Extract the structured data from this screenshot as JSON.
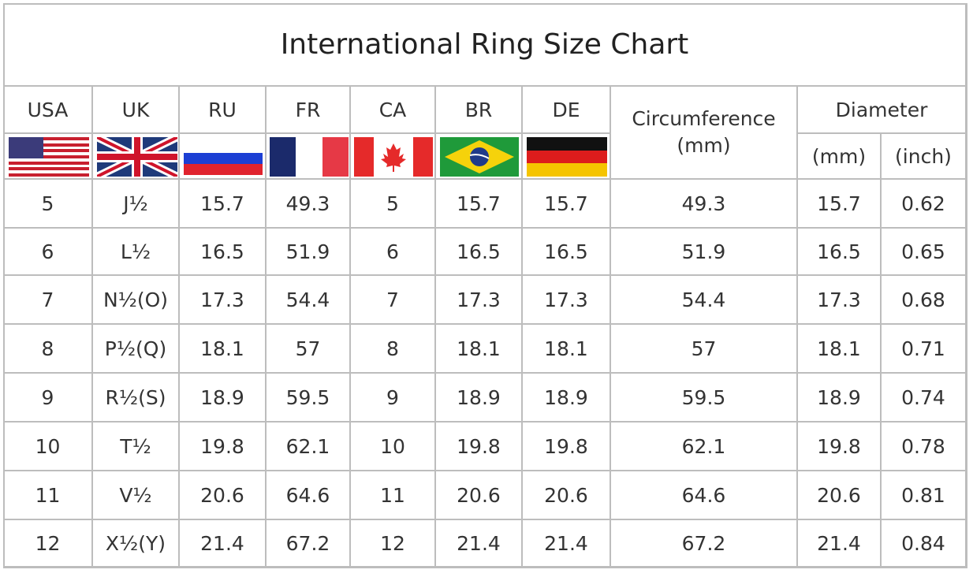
{
  "title": "International Ring Size Chart",
  "header": {
    "countries": [
      "USA",
      "UK",
      "RU",
      "FR",
      "CA",
      "BR",
      "DE"
    ],
    "circumference": {
      "label": "Circumference",
      "unit": "(mm)"
    },
    "diameter": {
      "label": "Diameter",
      "units": [
        "(mm)",
        "(inch)"
      ]
    }
  },
  "table": {
    "rows": [
      [
        "5",
        "J½",
        "15.7",
        "49.3",
        "5",
        "15.7",
        "15.7",
        "49.3",
        "15.7",
        "0.62"
      ],
      [
        "6",
        "L½",
        "16.5",
        "51.9",
        "6",
        "16.5",
        "16.5",
        "51.9",
        "16.5",
        "0.65"
      ],
      [
        "7",
        "N½(O)",
        "17.3",
        "54.4",
        "7",
        "17.3",
        "17.3",
        "54.4",
        "17.3",
        "0.68"
      ],
      [
        "8",
        "P½(Q)",
        "18.1",
        "57",
        "8",
        "18.1",
        "18.1",
        "57",
        "18.1",
        "0.71"
      ],
      [
        "9",
        "R½(S)",
        "18.9",
        "59.5",
        "9",
        "18.9",
        "18.9",
        "59.5",
        "18.9",
        "0.74"
      ],
      [
        "10",
        "T½",
        "19.8",
        "62.1",
        "10",
        "19.8",
        "19.8",
        "62.1",
        "19.8",
        "0.78"
      ],
      [
        "11",
        "V½",
        "20.6",
        "64.6",
        "11",
        "20.6",
        "20.6",
        "64.6",
        "20.6",
        "0.81"
      ],
      [
        "12",
        "X½(Y)",
        "21.4",
        "67.2",
        "12",
        "21.4",
        "21.4",
        "67.2",
        "21.4",
        "0.84"
      ]
    ]
  }
}
